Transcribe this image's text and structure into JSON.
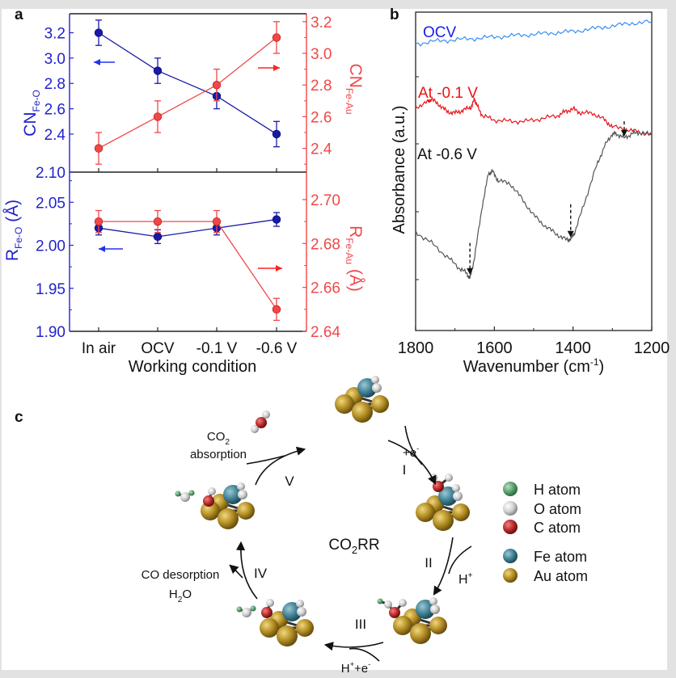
{
  "colors": {
    "blue_axis": "#2222cc",
    "blue_series": "#1a1aa8",
    "red_axis": "#f04848",
    "red_series": "#f04848",
    "ocv_line": "#3a8ef0",
    "neg01_line": "#e8141c",
    "neg06_line": "#555555",
    "frame": "#222222",
    "H": "#5a9e6e",
    "O": "#d4d4d4",
    "C": "#b82a2a",
    "Fe": "#3e7f92",
    "Au": "#b08a20"
  },
  "panel_labels": {
    "a": "a",
    "b": "b",
    "c": "c"
  },
  "chart_data": [
    {
      "id": "a-top",
      "type": "line",
      "categories": [
        "In air",
        "OCV",
        "-0.1 V",
        "-0.6 V"
      ],
      "series": [
        {
          "name": "CN Fe-O",
          "axis": "left",
          "values": [
            3.2,
            2.9,
            2.7,
            2.4
          ],
          "errors": [
            0.1,
            0.1,
            0.1,
            0.1
          ]
        },
        {
          "name": "CN Fe-Au",
          "axis": "right",
          "values": [
            2.4,
            2.6,
            2.8,
            3.1
          ],
          "errors": [
            0.1,
            0.1,
            0.1,
            0.1
          ]
        }
      ],
      "ylabel_left": {
        "main": "CN",
        "sub": "Fe-O"
      },
      "ylabel_right": {
        "main": "CN",
        "sub": "Fe-Au"
      },
      "ylim_left": [
        2.1,
        3.35
      ],
      "ylim_right": [
        2.25,
        3.25
      ],
      "yticks_left": [
        "2.10",
        "2.4",
        "2.6",
        "2.8",
        "3.0",
        "3.2"
      ],
      "yticks_left_values": [
        2.1,
        2.4,
        2.6,
        2.8,
        3.0,
        3.2
      ],
      "yticks_right": [
        "2.4",
        "2.6",
        "2.8",
        "3.0",
        "3.2"
      ],
      "yticks_right_values": [
        2.4,
        2.6,
        2.8,
        3.0,
        3.2
      ],
      "arrows": [
        {
          "direction": "left",
          "color": "blue"
        },
        {
          "direction": "right",
          "color": "red"
        }
      ]
    },
    {
      "id": "a-bottom",
      "type": "line",
      "categories": [
        "In air",
        "OCV",
        "-0.1 V",
        "-0.6 V"
      ],
      "series": [
        {
          "name": "R Fe-O",
          "axis": "left",
          "values": [
            2.02,
            2.01,
            2.02,
            2.03
          ],
          "errors": [
            0.008,
            0.008,
            0.008,
            0.008
          ]
        },
        {
          "name": "R Fe-Au",
          "axis": "right",
          "values": [
            2.69,
            2.69,
            2.69,
            2.65
          ],
          "errors": [
            0.005,
            0.005,
            0.005,
            0.005
          ]
        }
      ],
      "xlabel": "Working condition",
      "ylabel_left": {
        "main": "R",
        "sub": "Fe-O",
        "unit": " (Å)"
      },
      "ylabel_right": {
        "main": "R",
        "sub": "Fe-Au",
        "unit": " (Å)"
      },
      "ylim_left": [
        1.9,
        2.085
      ],
      "ylim_right": [
        2.64,
        2.7125
      ],
      "yticks_left": [
        "1.90",
        "1.95",
        "2.00",
        "2.05"
      ],
      "yticks_left_values": [
        1.9,
        1.95,
        2.0,
        2.05
      ],
      "yticks_right": [
        "2.64",
        "2.66",
        "2.68",
        "2.70"
      ],
      "yticks_right_values": [
        2.64,
        2.66,
        2.68,
        2.7
      ],
      "arrows": [
        {
          "direction": "left",
          "color": "blue"
        },
        {
          "direction": "right",
          "color": "red"
        }
      ]
    },
    {
      "id": "b",
      "type": "line",
      "title": "",
      "xlabel": "Wavenumber (cm",
      "xlabel_sup": "-1",
      "xlabel_end": ")",
      "ylabel": "Absorbance (a.u.)",
      "xlim": [
        1800,
        1200
      ],
      "xticks": [
        "1800",
        "1600",
        "1400",
        "1200"
      ],
      "xticks_values": [
        1800,
        1600,
        1400,
        1200
      ],
      "ylim": [
        0,
        10
      ],
      "series": [
        {
          "name": "OCV",
          "label": "OCV",
          "x": [
            1800,
            1750,
            1700,
            1650,
            1600,
            1550,
            1500,
            1450,
            1400,
            1350,
            1300,
            1250,
            1200
          ],
          "y": [
            9.2,
            9.3,
            9.35,
            9.4,
            9.45,
            9.5,
            9.55,
            9.6,
            9.65,
            9.75,
            9.85,
            9.95,
            10.0
          ]
        },
        {
          "name": "At -0.1 V",
          "label": "At -0.1 V",
          "x": [
            1800,
            1770,
            1760,
            1740,
            1720,
            1700,
            1680,
            1660,
            1650,
            1645,
            1630,
            1600,
            1560,
            1520,
            1480,
            1440,
            1420,
            1400,
            1380,
            1350,
            1320,
            1300,
            1260,
            1230,
            1200
          ],
          "y": [
            6.9,
            7.1,
            7.2,
            7.0,
            6.75,
            6.7,
            6.8,
            6.9,
            7.2,
            7.0,
            6.6,
            6.45,
            6.4,
            6.4,
            6.5,
            6.6,
            6.75,
            6.85,
            6.7,
            6.7,
            6.45,
            6.2,
            6.1,
            6.0,
            5.9
          ]
        },
        {
          "name": "At -0.6 V",
          "label": "At -0.6 V",
          "x": [
            1800,
            1760,
            1720,
            1690,
            1670,
            1662,
            1650,
            1630,
            1615,
            1605,
            1590,
            1560,
            1530,
            1500,
            1470,
            1440,
            1415,
            1405,
            1395,
            1370,
            1340,
            1320,
            1300,
            1290,
            1270,
            1250,
            1230,
            1200
          ],
          "y": [
            2.4,
            2.0,
            1.5,
            1.1,
            0.9,
            0.7,
            1.5,
            3.4,
            4.5,
            4.6,
            4.25,
            4.15,
            3.6,
            3.0,
            2.6,
            2.3,
            2.1,
            2.15,
            2.4,
            3.5,
            4.8,
            5.5,
            5.95,
            5.95,
            5.8,
            5.95,
            6.0,
            5.9
          ]
        }
      ],
      "annotations": [
        {
          "type": "dashed-arrow",
          "x": 1662,
          "y_from": 2.0,
          "y_to": 0.85
        },
        {
          "type": "dashed-arrow",
          "x": 1406,
          "y_from": 3.4,
          "y_to": 2.2
        },
        {
          "type": "dashed-arrow",
          "x": 1270,
          "y_from": 6.4,
          "y_to": 5.85
        }
      ]
    }
  ],
  "diagram": {
    "center_label": "CO",
    "center_label_sub": "2",
    "center_label_end": "RR",
    "steps": [
      {
        "roman": "I",
        "reagent": "+e",
        "reagent_sup": "-"
      },
      {
        "roman": "II",
        "reagent": "H",
        "reagent_sup": "+"
      },
      {
        "roman": "III",
        "reagent": "H",
        "reagent_sup": "+",
        "reagent2": "+e",
        "reagent2_sup": "-"
      },
      {
        "roman": "IV",
        "line1": "CO desorption",
        "line2_a": "H",
        "line2_sub": "2",
        "line2_b": "O"
      },
      {
        "roman": "V",
        "line1_a": "CO",
        "line1_sub": "2",
        "line2": "absorption"
      }
    ],
    "legend": [
      {
        "label": "H atom",
        "color_key": "H"
      },
      {
        "label": "O atom",
        "color_key": "O"
      },
      {
        "label": "C atom",
        "color_key": "C"
      },
      {
        "label": "Fe atom",
        "color_key": "Fe"
      },
      {
        "label": "Au atom",
        "color_key": "Au"
      }
    ]
  }
}
